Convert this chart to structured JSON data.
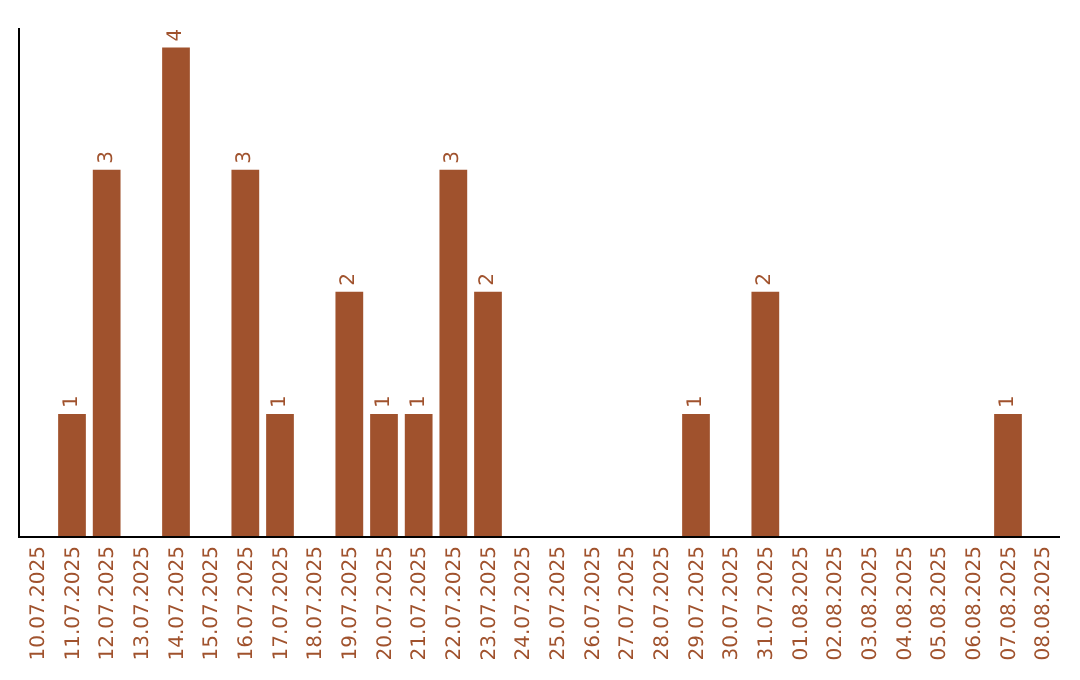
{
  "chart_data": {
    "type": "bar",
    "categories": [
      "10.07.2025",
      "11.07.2025",
      "12.07.2025",
      "13.07.2025",
      "14.07.2025",
      "15.07.2025",
      "16.07.2025",
      "17.07.2025",
      "18.07.2025",
      "19.07.2025",
      "20.07.2025",
      "21.07.2025",
      "22.07.2025",
      "23.07.2025",
      "24.07.2025",
      "25.07.2025",
      "26.07.2025",
      "27.07.2025",
      "28.07.2025",
      "29.07.2025",
      "30.07.2025",
      "31.07.2025",
      "01.08.2025",
      "02.08.2025",
      "03.08.2025",
      "04.08.2025",
      "05.08.2025",
      "06.08.2025",
      "07.08.2025",
      "08.08.2025"
    ],
    "values": [
      0,
      1,
      3,
      0,
      4,
      0,
      3,
      1,
      0,
      2,
      1,
      1,
      3,
      2,
      0,
      0,
      0,
      0,
      0,
      1,
      0,
      2,
      0,
      0,
      0,
      0,
      0,
      0,
      1,
      0
    ],
    "value_labels": [
      null,
      "1",
      "3",
      null,
      "4",
      null,
      "3",
      "1",
      null,
      "2",
      "1",
      "1",
      "3",
      "2",
      null,
      null,
      null,
      null,
      null,
      "1",
      null,
      "2",
      null,
      null,
      null,
      null,
      null,
      null,
      "1",
      null
    ],
    "color": "#a0522d",
    "tick_labels": "x",
    "legend": false
  }
}
